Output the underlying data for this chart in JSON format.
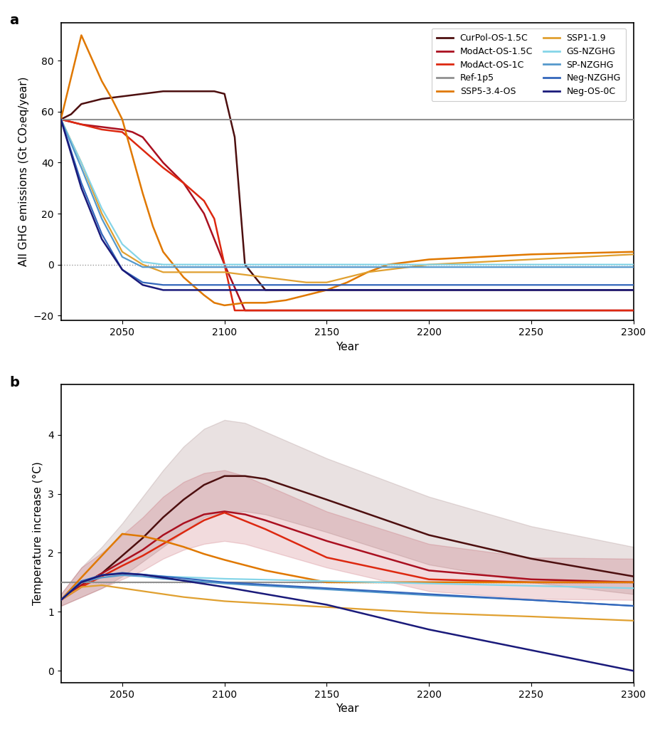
{
  "ylabel_a": "All GHG emissions (Gt CO₂eq/year)",
  "ylabel_b": "Temperature increase (°C)",
  "xlabel": "Year",
  "colors": {
    "CurPol-OS-1.5C": "#4d0f0f",
    "ModAct-OS-1.5C": "#aa1020",
    "ModAct-OS-1C": "#dd2810",
    "Ref-1p5": "#909090",
    "SSP5-3.4-OS": "#e07800",
    "SSP1-1.9": "#e0a030",
    "GS-NZGHG": "#85d5e8",
    "SP-NZGHG": "#5599cc",
    "Neg-NZGHG": "#3366bb",
    "Neg-OS-0C": "#1a1a7a"
  },
  "scenarios_ghg": {
    "CurPol-OS-1.5C": {
      "x": [
        2020,
        2025,
        2030,
        2040,
        2050,
        2060,
        2070,
        2075,
        2080,
        2090,
        2095,
        2100,
        2105,
        2108,
        2110,
        2120,
        2150,
        2200,
        2300
      ],
      "y": [
        57,
        59,
        63,
        65,
        66,
        67,
        68,
        68,
        68,
        68,
        68,
        67,
        50,
        20,
        0,
        -10,
        -10,
        -10,
        -10
      ]
    },
    "ModAct-OS-1.5C": {
      "x": [
        2020,
        2025,
        2030,
        2040,
        2050,
        2055,
        2060,
        2070,
        2080,
        2090,
        2095,
        2100,
        2110,
        2150,
        2200,
        2300
      ],
      "y": [
        57,
        56,
        55,
        54,
        53,
        52,
        50,
        40,
        32,
        20,
        10,
        0,
        -18,
        -18,
        -18,
        -18
      ]
    },
    "ModAct-OS-1C": {
      "x": [
        2020,
        2025,
        2030,
        2040,
        2050,
        2060,
        2070,
        2080,
        2090,
        2095,
        2100,
        2105,
        2120,
        2150,
        2200,
        2300
      ],
      "y": [
        57,
        56,
        55,
        53,
        52,
        45,
        38,
        32,
        25,
        18,
        0,
        -18,
        -18,
        -18,
        -18,
        -18
      ]
    },
    "Ref-1p5": {
      "x": [
        2020,
        2300
      ],
      "y": [
        57,
        57
      ]
    },
    "SSP5-3.4-OS": {
      "x": [
        2020,
        2030,
        2040,
        2045,
        2050,
        2060,
        2065,
        2070,
        2080,
        2090,
        2095,
        2100,
        2110,
        2120,
        2130,
        2140,
        2150,
        2160,
        2170,
        2180,
        2200,
        2250,
        2300
      ],
      "y": [
        57,
        90,
        72,
        65,
        57,
        28,
        15,
        5,
        -5,
        -12,
        -15,
        -16,
        -15,
        -15,
        -14,
        -12,
        -10,
        -7,
        -3,
        0,
        2,
        4,
        5
      ]
    },
    "SSP1-1.9": {
      "x": [
        2020,
        2030,
        2040,
        2050,
        2060,
        2070,
        2080,
        2090,
        2100,
        2120,
        2130,
        2140,
        2150,
        2160,
        2170,
        2200,
        2250,
        2300
      ],
      "y": [
        57,
        40,
        20,
        5,
        0,
        -3,
        -3,
        -3,
        -3,
        -5,
        -6,
        -7,
        -7,
        -5,
        -3,
        0,
        2,
        4
      ]
    },
    "GS-NZGHG": {
      "x": [
        2020,
        2030,
        2040,
        2050,
        2060,
        2070,
        2080,
        2090,
        2100,
        2150,
        2200,
        2300
      ],
      "y": [
        57,
        40,
        22,
        8,
        1,
        0,
        0,
        0,
        0,
        0,
        0,
        0
      ]
    },
    "SP-NZGHG": {
      "x": [
        2020,
        2030,
        2040,
        2050,
        2060,
        2070,
        2080,
        2090,
        2100,
        2150,
        2200,
        2300
      ],
      "y": [
        57,
        38,
        18,
        3,
        -1,
        -1,
        -1,
        -1,
        -1,
        -1,
        -1,
        -1
      ]
    },
    "Neg-NZGHG": {
      "x": [
        2020,
        2030,
        2040,
        2050,
        2060,
        2070,
        2080,
        2090,
        2100,
        2150,
        2200,
        2300
      ],
      "y": [
        57,
        32,
        12,
        -2,
        -7,
        -8,
        -8,
        -8,
        -8,
        -8,
        -8,
        -8
      ]
    },
    "Neg-OS-0C": {
      "x": [
        2020,
        2030,
        2040,
        2050,
        2060,
        2070,
        2080,
        2090,
        2100,
        2150,
        2200,
        2300
      ],
      "y": [
        57,
        30,
        10,
        -2,
        -8,
        -10,
        -10,
        -10,
        -10,
        -10,
        -10,
        -10
      ]
    }
  },
  "scenarios_temp": {
    "CurPol-OS-1.5C": {
      "x": [
        2020,
        2030,
        2040,
        2050,
        2060,
        2070,
        2080,
        2090,
        2100,
        2110,
        2120,
        2150,
        2200,
        2250,
        2300
      ],
      "y": [
        1.2,
        1.45,
        1.65,
        1.95,
        2.25,
        2.6,
        2.9,
        3.15,
        3.3,
        3.3,
        3.25,
        2.9,
        2.3,
        1.9,
        1.6
      ],
      "y_low": [
        1.1,
        1.25,
        1.4,
        1.6,
        1.85,
        2.1,
        2.35,
        2.6,
        2.7,
        2.7,
        2.65,
        2.35,
        1.8,
        1.5,
        1.3
      ],
      "y_high": [
        1.3,
        1.75,
        2.1,
        2.5,
        2.95,
        3.4,
        3.8,
        4.1,
        4.25,
        4.2,
        4.05,
        3.6,
        2.95,
        2.45,
        2.1
      ]
    },
    "ModAct-OS-1.5C": {
      "x": [
        2020,
        2030,
        2040,
        2050,
        2060,
        2070,
        2080,
        2090,
        2100,
        2110,
        2120,
        2150,
        2200,
        2250,
        2300
      ],
      "y": [
        1.2,
        1.45,
        1.65,
        1.85,
        2.05,
        2.3,
        2.5,
        2.65,
        2.7,
        2.65,
        2.55,
        2.2,
        1.7,
        1.55,
        1.5
      ],
      "y_low": [
        1.1,
        1.25,
        1.4,
        1.55,
        1.7,
        1.9,
        2.05,
        2.15,
        2.2,
        2.15,
        2.05,
        1.75,
        1.35,
        1.22,
        1.2
      ],
      "y_high": [
        1.3,
        1.75,
        2.0,
        2.3,
        2.6,
        2.95,
        3.2,
        3.35,
        3.4,
        3.3,
        3.15,
        2.7,
        2.15,
        1.92,
        1.9
      ]
    },
    "ModAct-OS-1C": {
      "x": [
        2020,
        2030,
        2040,
        2050,
        2060,
        2070,
        2080,
        2090,
        2100,
        2120,
        2150,
        2200,
        2250,
        2300
      ],
      "y": [
        1.2,
        1.42,
        1.6,
        1.78,
        1.95,
        2.15,
        2.35,
        2.55,
        2.68,
        2.4,
        1.92,
        1.55,
        1.5,
        1.5
      ],
      "y_low": null,
      "y_high": null
    },
    "Ref-1p5": {
      "x": [
        2020,
        2300
      ],
      "y": [
        1.5,
        1.5
      ],
      "y_low": null,
      "y_high": null
    },
    "SSP5-3.4-OS": {
      "x": [
        2020,
        2030,
        2040,
        2050,
        2060,
        2070,
        2080,
        2090,
        2100,
        2120,
        2150,
        2200,
        2250,
        2300
      ],
      "y": [
        1.2,
        1.58,
        1.95,
        2.32,
        2.28,
        2.2,
        2.1,
        1.98,
        1.88,
        1.7,
        1.5,
        1.5,
        1.5,
        1.5
      ],
      "y_low": null,
      "y_high": null
    },
    "SSP1-1.9": {
      "x": [
        2020,
        2030,
        2040,
        2050,
        2060,
        2070,
        2080,
        2100,
        2150,
        2200,
        2250,
        2300
      ],
      "y": [
        1.2,
        1.42,
        1.45,
        1.4,
        1.35,
        1.3,
        1.25,
        1.18,
        1.08,
        0.98,
        0.92,
        0.85
      ],
      "y_low": null,
      "y_high": null
    },
    "GS-NZGHG": {
      "x": [
        2020,
        2030,
        2040,
        2050,
        2060,
        2070,
        2100,
        2150,
        2200,
        2250,
        2300
      ],
      "y": [
        1.2,
        1.52,
        1.62,
        1.65,
        1.63,
        1.6,
        1.56,
        1.52,
        1.48,
        1.44,
        1.4
      ],
      "y_low": null,
      "y_high": null
    },
    "SP-NZGHG": {
      "x": [
        2020,
        2030,
        2040,
        2050,
        2060,
        2070,
        2100,
        2150,
        2200,
        2250,
        2300
      ],
      "y": [
        1.2,
        1.5,
        1.58,
        1.62,
        1.6,
        1.56,
        1.48,
        1.38,
        1.28,
        1.2,
        1.1
      ],
      "y_low": null,
      "y_high": null
    },
    "Neg-NZGHG": {
      "x": [
        2020,
        2030,
        2040,
        2050,
        2060,
        2070,
        2100,
        2150,
        2200,
        2250,
        2300
      ],
      "y": [
        1.2,
        1.52,
        1.62,
        1.66,
        1.63,
        1.6,
        1.5,
        1.4,
        1.3,
        1.2,
        1.1
      ],
      "y_low": null,
      "y_high": null
    },
    "Neg-OS-0C": {
      "x": [
        2020,
        2030,
        2040,
        2050,
        2060,
        2070,
        2100,
        2150,
        2200,
        2250,
        2300
      ],
      "y": [
        1.2,
        1.5,
        1.62,
        1.65,
        1.63,
        1.58,
        1.42,
        1.12,
        0.7,
        0.35,
        0.0
      ],
      "y_low": null,
      "y_high": null
    }
  },
  "scenario_order": [
    "CurPol-OS-1.5C",
    "ModAct-OS-1.5C",
    "ModAct-OS-1C",
    "Ref-1p5",
    "SSP5-3.4-OS",
    "SSP1-1.9",
    "GS-NZGHG",
    "SP-NZGHG",
    "Neg-NZGHG",
    "Neg-OS-0C"
  ],
  "linewidths": {
    "CurPol-OS-1.5C": 1.8,
    "ModAct-OS-1.5C": 1.8,
    "ModAct-OS-1C": 1.8,
    "Ref-1p5": 1.5,
    "SSP5-3.4-OS": 1.8,
    "SSP1-1.9": 1.6,
    "GS-NZGHG": 1.6,
    "SP-NZGHG": 1.6,
    "Neg-NZGHG": 1.6,
    "Neg-OS-0C": 1.8
  }
}
